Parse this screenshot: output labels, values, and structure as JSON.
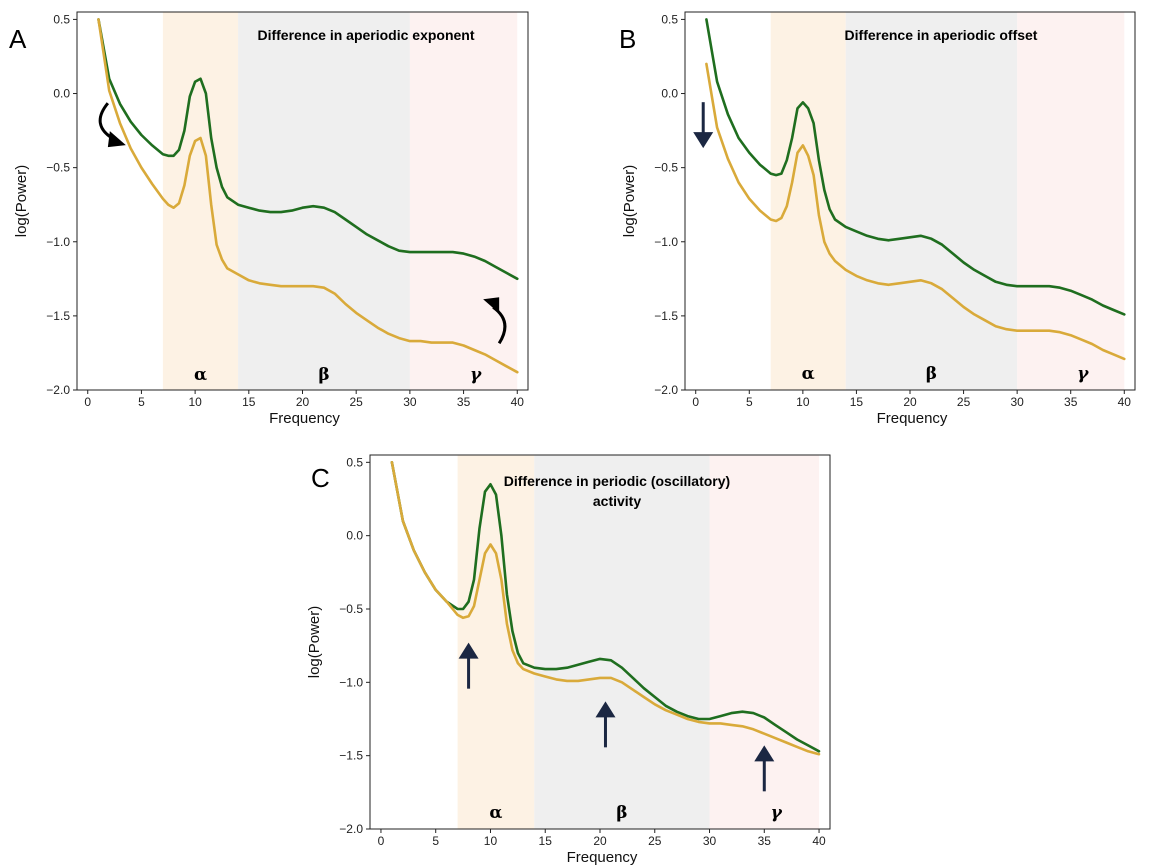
{
  "colors": {
    "green": "#1f6e1f",
    "gold": "#d9aa3a",
    "alpha_band": "#fdf2e4",
    "beta_band": "#efefef",
    "gamma_band": "#fdf2f1",
    "arrow_navy": "#1b2742",
    "arrow_black": "#000000"
  },
  "chart_data": [
    {
      "panel": "A",
      "type": "line",
      "title": "Difference in aperiodic exponent",
      "xlabel": "Frequency",
      "ylabel": "log(Power)",
      "xlim": [
        -1,
        41
      ],
      "ylim": [
        -2.0,
        0.55
      ],
      "xticks": [
        0,
        5,
        10,
        15,
        20,
        25,
        30,
        35,
        40
      ],
      "yticks": [
        0.5,
        0.0,
        -0.5,
        -1.0,
        -1.5,
        -2.0
      ],
      "xtick_labels": [
        "0",
        "5",
        "10",
        "15",
        "20",
        "25",
        "30",
        "35",
        "40"
      ],
      "ytick_labels": [
        "0.5",
        "0.0",
        "−0.5",
        "−1.0",
        "−1.5",
        "−2.0"
      ],
      "bands": [
        {
          "label": "α",
          "range": [
            7,
            14
          ],
          "color": "#fdf2e4"
        },
        {
          "label": "β",
          "range": [
            14,
            30
          ],
          "color": "#efefef"
        },
        {
          "label": "γ",
          "range": [
            30,
            40
          ],
          "color": "#fdf2f1"
        }
      ],
      "series": [
        {
          "color": "#1f6e1f",
          "x": [
            1,
            2,
            3,
            4,
            5,
            6,
            7,
            7.5,
            8,
            8.5,
            9,
            9.5,
            10,
            10.5,
            11,
            11.5,
            12,
            12.5,
            13,
            14,
            15,
            16,
            17,
            18,
            19,
            20,
            21,
            22,
            23,
            24,
            25,
            26,
            27,
            28,
            29,
            30,
            31,
            32,
            33,
            34,
            35,
            36,
            37,
            38,
            39,
            40
          ],
          "y": [
            0.5,
            0.1,
            -0.07,
            -0.19,
            -0.28,
            -0.35,
            -0.41,
            -0.42,
            -0.42,
            -0.38,
            -0.25,
            -0.02,
            0.08,
            0.1,
            0.0,
            -0.3,
            -0.5,
            -0.63,
            -0.7,
            -0.75,
            -0.77,
            -0.79,
            -0.8,
            -0.8,
            -0.79,
            -0.77,
            -0.76,
            -0.77,
            -0.8,
            -0.85,
            -0.9,
            -0.95,
            -0.99,
            -1.03,
            -1.06,
            -1.07,
            -1.07,
            -1.07,
            -1.07,
            -1.07,
            -1.08,
            -1.1,
            -1.13,
            -1.17,
            -1.21,
            -1.25
          ]
        },
        {
          "color": "#d9aa3a",
          "x": [
            1,
            2,
            3,
            4,
            5,
            6,
            7,
            7.5,
            8,
            8.5,
            9,
            9.5,
            10,
            10.5,
            11,
            11.5,
            12,
            12.5,
            13,
            14,
            15,
            16,
            17,
            18,
            19,
            20,
            21,
            22,
            23,
            24,
            25,
            26,
            27,
            28,
            29,
            30,
            31,
            32,
            33,
            34,
            35,
            36,
            37,
            38,
            39,
            40
          ],
          "y": [
            0.5,
            0.02,
            -0.2,
            -0.37,
            -0.5,
            -0.61,
            -0.71,
            -0.75,
            -0.77,
            -0.74,
            -0.62,
            -0.42,
            -0.32,
            -0.3,
            -0.42,
            -0.75,
            -1.02,
            -1.12,
            -1.18,
            -1.22,
            -1.26,
            -1.28,
            -1.29,
            -1.3,
            -1.3,
            -1.3,
            -1.3,
            -1.31,
            -1.35,
            -1.42,
            -1.48,
            -1.53,
            -1.58,
            -1.62,
            -1.65,
            -1.67,
            -1.67,
            -1.68,
            -1.68,
            -1.68,
            -1.7,
            -1.73,
            -1.76,
            -1.8,
            -1.84,
            -1.88
          ]
        }
      ],
      "annotations": [
        {
          "kind": "curved-arrow",
          "direction": "down-right",
          "color": "#000000",
          "x": 1.5,
          "y": -0.2
        },
        {
          "kind": "curved-arrow",
          "direction": "up-left",
          "color": "#000000",
          "x": 38.5,
          "y": -1.55
        }
      ]
    },
    {
      "panel": "B",
      "type": "line",
      "title": "Difference in aperiodic offset",
      "xlabel": "Frequency",
      "ylabel": "log(Power)",
      "xlim": [
        -1,
        41
      ],
      "ylim": [
        -2.0,
        0.55
      ],
      "xticks": [
        0,
        5,
        10,
        15,
        20,
        25,
        30,
        35,
        40
      ],
      "yticks": [
        0.5,
        0.0,
        -0.5,
        -1.0,
        -1.5,
        -2.0
      ],
      "xtick_labels": [
        "0",
        "5",
        "10",
        "15",
        "20",
        "25",
        "30",
        "35",
        "40"
      ],
      "ytick_labels": [
        "0.5",
        "0.0",
        "−0.5",
        "−1.0",
        "−1.5",
        "−2.0"
      ],
      "bands": [
        {
          "label": "α",
          "range": [
            7,
            14
          ],
          "color": "#fdf2e4"
        },
        {
          "label": "β",
          "range": [
            14,
            30
          ],
          "color": "#efefef"
        },
        {
          "label": "γ",
          "range": [
            30,
            40
          ],
          "color": "#fdf2f1"
        }
      ],
      "series": [
        {
          "color": "#1f6e1f",
          "x": [
            1,
            2,
            3,
            4,
            5,
            6,
            7,
            7.5,
            8,
            8.5,
            9,
            9.5,
            10,
            10.5,
            11,
            11.5,
            12,
            12.5,
            13,
            14,
            15,
            16,
            17,
            18,
            19,
            20,
            21,
            22,
            23,
            24,
            25,
            26,
            27,
            28,
            29,
            30,
            31,
            32,
            33,
            34,
            35,
            36,
            37,
            38,
            39,
            40
          ],
          "y": [
            0.5,
            0.08,
            -0.14,
            -0.3,
            -0.4,
            -0.48,
            -0.54,
            -0.55,
            -0.54,
            -0.45,
            -0.3,
            -0.1,
            -0.06,
            -0.1,
            -0.2,
            -0.45,
            -0.65,
            -0.78,
            -0.85,
            -0.9,
            -0.93,
            -0.96,
            -0.98,
            -0.99,
            -0.98,
            -0.97,
            -0.96,
            -0.98,
            -1.02,
            -1.08,
            -1.14,
            -1.19,
            -1.23,
            -1.27,
            -1.29,
            -1.3,
            -1.3,
            -1.3,
            -1.3,
            -1.31,
            -1.33,
            -1.36,
            -1.39,
            -1.43,
            -1.46,
            -1.49
          ]
        },
        {
          "color": "#d9aa3a",
          "x": [
            1,
            2,
            3,
            4,
            5,
            6,
            7,
            7.5,
            8,
            8.5,
            9,
            9.5,
            10,
            10.5,
            11,
            11.5,
            12,
            12.5,
            13,
            14,
            15,
            16,
            17,
            18,
            19,
            20,
            21,
            22,
            23,
            24,
            25,
            26,
            27,
            28,
            29,
            30,
            31,
            32,
            33,
            34,
            35,
            36,
            37,
            38,
            39,
            40
          ],
          "y": [
            0.2,
            -0.23,
            -0.44,
            -0.6,
            -0.71,
            -0.79,
            -0.85,
            -0.86,
            -0.84,
            -0.76,
            -0.6,
            -0.4,
            -0.35,
            -0.42,
            -0.55,
            -0.82,
            -1.0,
            -1.08,
            -1.13,
            -1.19,
            -1.23,
            -1.26,
            -1.28,
            -1.29,
            -1.28,
            -1.27,
            -1.26,
            -1.28,
            -1.32,
            -1.38,
            -1.44,
            -1.49,
            -1.53,
            -1.57,
            -1.59,
            -1.6,
            -1.6,
            -1.6,
            -1.6,
            -1.61,
            -1.63,
            -1.66,
            -1.69,
            -1.73,
            -1.76,
            -1.79
          ]
        }
      ],
      "annotations": [
        {
          "kind": "straight-arrow",
          "direction": "down",
          "color": "#1b2742",
          "x": 0.7,
          "y": -0.2
        }
      ]
    },
    {
      "panel": "C",
      "type": "line",
      "title": "Difference in periodic (oscillatory) activity",
      "title_lines": [
        "Difference in periodic (oscillatory)",
        "activity"
      ],
      "xlabel": "Frequency",
      "ylabel": "log(Power)",
      "xlim": [
        -1,
        41
      ],
      "ylim": [
        -2.0,
        0.55
      ],
      "xticks": [
        0,
        5,
        10,
        15,
        20,
        25,
        30,
        35,
        40
      ],
      "yticks": [
        0.5,
        0.0,
        -0.5,
        -1.0,
        -1.5,
        -2.0
      ],
      "xtick_labels": [
        "0",
        "5",
        "10",
        "15",
        "20",
        "25",
        "30",
        "35",
        "40"
      ],
      "ytick_labels": [
        "0.5",
        "0.0",
        "−0.5",
        "−1.0",
        "−1.5",
        "−2.0"
      ],
      "bands": [
        {
          "label": "α",
          "range": [
            7,
            14
          ],
          "color": "#fdf2e4"
        },
        {
          "label": "β",
          "range": [
            14,
            30
          ],
          "color": "#efefef"
        },
        {
          "label": "γ",
          "range": [
            30,
            40
          ],
          "color": "#fdf2f1"
        }
      ],
      "series": [
        {
          "color": "#1f6e1f",
          "x": [
            1,
            2,
            3,
            4,
            5,
            6,
            7,
            7.5,
            8,
            8.5,
            9,
            9.5,
            10,
            10.5,
            11,
            11.5,
            12,
            12.5,
            13,
            14,
            15,
            16,
            17,
            18,
            19,
            20,
            21,
            22,
            23,
            24,
            25,
            26,
            27,
            28,
            29,
            30,
            31,
            32,
            33,
            34,
            35,
            36,
            37,
            38,
            39,
            40
          ],
          "y": [
            0.5,
            0.1,
            -0.1,
            -0.25,
            -0.37,
            -0.45,
            -0.5,
            -0.5,
            -0.45,
            -0.3,
            0.05,
            0.3,
            0.35,
            0.28,
            0.0,
            -0.4,
            -0.65,
            -0.8,
            -0.87,
            -0.9,
            -0.91,
            -0.91,
            -0.9,
            -0.88,
            -0.86,
            -0.84,
            -0.85,
            -0.9,
            -0.97,
            -1.04,
            -1.1,
            -1.16,
            -1.2,
            -1.23,
            -1.25,
            -1.25,
            -1.23,
            -1.21,
            -1.2,
            -1.21,
            -1.24,
            -1.29,
            -1.34,
            -1.39,
            -1.43,
            -1.47
          ]
        },
        {
          "color": "#d9aa3a",
          "x": [
            1,
            2,
            3,
            4,
            5,
            6,
            7,
            7.5,
            8,
            8.5,
            9,
            9.5,
            10,
            10.5,
            11,
            11.5,
            12,
            12.5,
            13,
            14,
            15,
            16,
            17,
            18,
            19,
            20,
            21,
            22,
            23,
            24,
            25,
            26,
            27,
            28,
            29,
            30,
            31,
            32,
            33,
            34,
            35,
            36,
            37,
            38,
            39,
            40
          ],
          "y": [
            0.5,
            0.1,
            -0.1,
            -0.25,
            -0.37,
            -0.45,
            -0.54,
            -0.56,
            -0.55,
            -0.48,
            -0.3,
            -0.12,
            -0.06,
            -0.12,
            -0.3,
            -0.6,
            -0.78,
            -0.87,
            -0.91,
            -0.94,
            -0.96,
            -0.98,
            -0.99,
            -0.99,
            -0.98,
            -0.97,
            -0.97,
            -1.0,
            -1.05,
            -1.1,
            -1.15,
            -1.19,
            -1.22,
            -1.25,
            -1.27,
            -1.28,
            -1.28,
            -1.29,
            -1.3,
            -1.32,
            -1.35,
            -1.38,
            -1.41,
            -1.44,
            -1.47,
            -1.49
          ]
        }
      ],
      "annotations": [
        {
          "kind": "straight-arrow",
          "direction": "up",
          "color": "#1b2742",
          "x": 8,
          "y": -0.9
        },
        {
          "kind": "straight-arrow",
          "direction": "up",
          "color": "#1b2742",
          "x": 20.5,
          "y": -1.3
        },
        {
          "kind": "straight-arrow",
          "direction": "up",
          "color": "#1b2742",
          "x": 35,
          "y": -1.6
        }
      ]
    }
  ]
}
